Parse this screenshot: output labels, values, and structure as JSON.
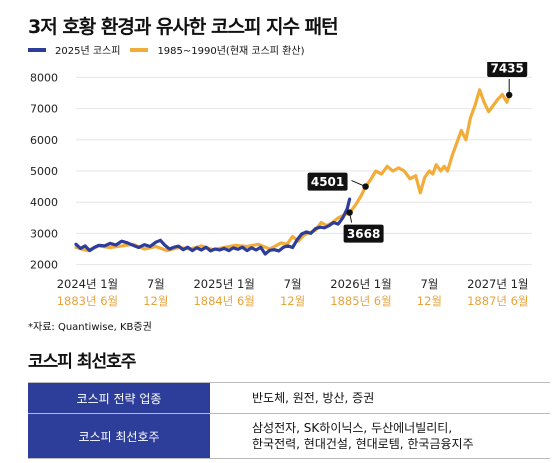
{
  "title": "3저 호황 환경과 유사한 코스피 지수 패턴",
  "legend": {
    "blue": "2025년 코스피",
    "orange": "1985~1990년(현재 코스피 환산)"
  },
  "colors": {
    "blue": "#2c3d9a",
    "orange": "#f2ac3a",
    "orange_text": "#e8a33a"
  },
  "chart_data": {
    "type": "line",
    "ylim": [
      1700,
      8300
    ],
    "yticks": [
      2000,
      3000,
      4000,
      5000,
      6000,
      7000,
      8000
    ],
    "xlim": [
      0,
      40
    ],
    "xticks": [
      {
        "x": 1,
        "top": "2024년 1월",
        "bottom": "1883년 6월"
      },
      {
        "x": 7,
        "top": "7월",
        "bottom": "12월"
      },
      {
        "x": 13,
        "top": "2025년 1월",
        "bottom": "1884년 6월"
      },
      {
        "x": 19,
        "top": "7월",
        "bottom": "12월"
      },
      {
        "x": 25,
        "top": "2026년 1월",
        "bottom": "1885년 6월"
      },
      {
        "x": 31,
        "top": "7월",
        "bottom": "12월"
      },
      {
        "x": 37,
        "top": "2027년 1월",
        "bottom": "1887년 6월"
      }
    ],
    "series": [
      {
        "name": "2025년 코스피",
        "color": "#2c3d9a",
        "points": [
          [
            0.0,
            2650
          ],
          [
            0.4,
            2520
          ],
          [
            0.8,
            2600
          ],
          [
            1.2,
            2450
          ],
          [
            1.6,
            2550
          ],
          [
            2.0,
            2620
          ],
          [
            2.5,
            2600
          ],
          [
            3.0,
            2680
          ],
          [
            3.5,
            2630
          ],
          [
            4.0,
            2750
          ],
          [
            4.5,
            2700
          ],
          [
            5.0,
            2620
          ],
          [
            5.5,
            2550
          ],
          [
            6.0,
            2640
          ],
          [
            6.5,
            2580
          ],
          [
            7.0,
            2720
          ],
          [
            7.4,
            2780
          ],
          [
            7.8,
            2620
          ],
          [
            8.2,
            2500
          ],
          [
            8.6,
            2560
          ],
          [
            9.0,
            2590
          ],
          [
            9.4,
            2480
          ],
          [
            9.8,
            2560
          ],
          [
            10.2,
            2450
          ],
          [
            10.6,
            2540
          ],
          [
            11.0,
            2470
          ],
          [
            11.4,
            2560
          ],
          [
            11.8,
            2440
          ],
          [
            12.2,
            2500
          ],
          [
            12.6,
            2470
          ],
          [
            13.0,
            2520
          ],
          [
            13.4,
            2450
          ],
          [
            13.8,
            2540
          ],
          [
            14.2,
            2490
          ],
          [
            14.6,
            2560
          ],
          [
            15.0,
            2450
          ],
          [
            15.4,
            2540
          ],
          [
            15.8,
            2470
          ],
          [
            16.2,
            2560
          ],
          [
            16.6,
            2340
          ],
          [
            17.0,
            2460
          ],
          [
            17.4,
            2480
          ],
          [
            17.8,
            2440
          ],
          [
            18.2,
            2560
          ],
          [
            18.6,
            2600
          ],
          [
            19.0,
            2550
          ],
          [
            19.4,
            2800
          ],
          [
            19.8,
            2980
          ],
          [
            20.2,
            3050
          ],
          [
            20.6,
            3000
          ],
          [
            21.0,
            3150
          ],
          [
            21.4,
            3200
          ],
          [
            21.8,
            3180
          ],
          [
            22.2,
            3250
          ],
          [
            22.6,
            3350
          ],
          [
            23.0,
            3300
          ],
          [
            23.4,
            3500
          ],
          [
            23.8,
            3800
          ],
          [
            24.0,
            4100
          ]
        ]
      },
      {
        "name": "1985~1990년(현재 코스피 환산)",
        "color": "#f2ac3a",
        "points": [
          [
            0.0,
            2550
          ],
          [
            1.0,
            2450
          ],
          [
            2.0,
            2600
          ],
          [
            3.0,
            2550
          ],
          [
            4.0,
            2600
          ],
          [
            5.0,
            2650
          ],
          [
            6.0,
            2500
          ],
          [
            7.0,
            2580
          ],
          [
            8.0,
            2450
          ],
          [
            9.0,
            2550
          ],
          [
            10.0,
            2500
          ],
          [
            11.0,
            2600
          ],
          [
            12.0,
            2480
          ],
          [
            13.0,
            2550
          ],
          [
            14.0,
            2620
          ],
          [
            15.0,
            2580
          ],
          [
            16.0,
            2650
          ],
          [
            17.0,
            2500
          ],
          [
            18.0,
            2700
          ],
          [
            18.5,
            2650
          ],
          [
            19.0,
            2900
          ],
          [
            19.5,
            2750
          ],
          [
            20.0,
            2950
          ],
          [
            21.0,
            3100
          ],
          [
            21.5,
            3350
          ],
          [
            22.0,
            3250
          ],
          [
            22.5,
            3350
          ],
          [
            23.0,
            3500
          ],
          [
            24.0,
            3668
          ],
          [
            24.5,
            3900
          ],
          [
            25.0,
            4200
          ],
          [
            25.4,
            4501
          ],
          [
            25.8,
            4700
          ],
          [
            26.3,
            5000
          ],
          [
            26.8,
            4900
          ],
          [
            27.3,
            5150
          ],
          [
            27.8,
            5000
          ],
          [
            28.3,
            5100
          ],
          [
            28.8,
            5000
          ],
          [
            29.3,
            4750
          ],
          [
            29.8,
            4850
          ],
          [
            30.2,
            4300
          ],
          [
            30.6,
            4800
          ],
          [
            31.0,
            5000
          ],
          [
            31.3,
            4900
          ],
          [
            31.6,
            5200
          ],
          [
            32.0,
            5000
          ],
          [
            32.3,
            5150
          ],
          [
            32.6,
            5000
          ],
          [
            33.0,
            5500
          ],
          [
            33.4,
            5900
          ],
          [
            33.8,
            6300
          ],
          [
            34.2,
            6000
          ],
          [
            34.6,
            6700
          ],
          [
            35.0,
            7100
          ],
          [
            35.4,
            7600
          ],
          [
            35.8,
            7200
          ],
          [
            36.2,
            6900
          ],
          [
            36.6,
            7100
          ],
          [
            37.0,
            7300
          ],
          [
            37.4,
            7450
          ],
          [
            37.8,
            7200
          ],
          [
            38.0,
            7435
          ]
        ]
      }
    ],
    "callouts": [
      {
        "label": "4501",
        "x": 25.4,
        "y": 4501
      },
      {
        "label": "3668",
        "x": 24.0,
        "y": 3668
      },
      {
        "label": "7435",
        "x": 38.0,
        "y": 7435
      }
    ]
  },
  "source": "*자료: Quantiwise, KB증권",
  "section_title": "코스피 최선호주",
  "table": {
    "rows": [
      {
        "header": "코스피 전략 업종",
        "lines": [
          "반도체, 원전, 방산, 증권"
        ]
      },
      {
        "header": "코스피 최선호주",
        "lines": [
          "삼성전자, SK하이닉스, 두산에너빌리티,",
          "한국전력, 현대건설, 현대로템, 한국금융지주"
        ]
      }
    ]
  }
}
